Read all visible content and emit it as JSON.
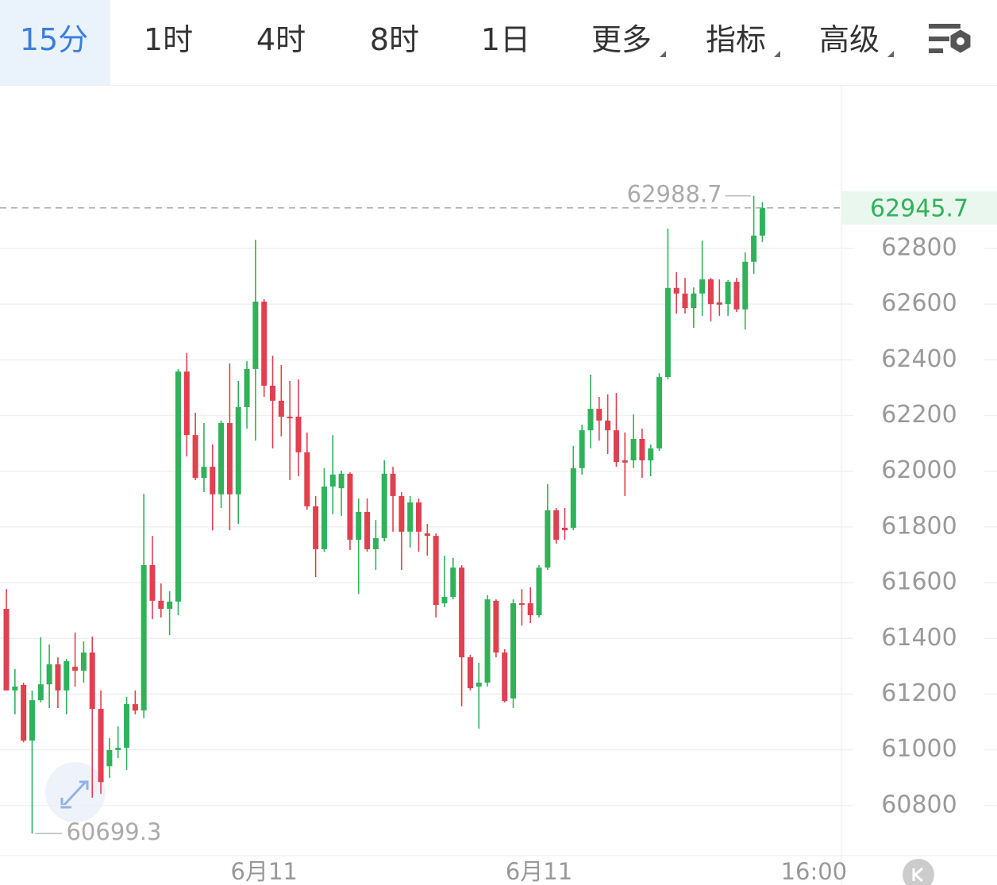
{
  "tabs": [
    "15分",
    "1时",
    "4时",
    "8时",
    "1日",
    "更多",
    "指标",
    "高级"
  ],
  "active_tab": 0,
  "chart_data": {
    "type": "candlestick",
    "open": [
      61506,
      61213,
      61233,
      61033,
      61178,
      61235,
      61307,
      61213,
      61298,
      61284,
      61349,
      61147,
      60941,
      60999,
      61007,
      61164,
      61141,
      61663,
      61535,
      61506,
      61532,
      62358,
      62130,
      61976,
      62016,
      61917,
      62173,
      61917,
      62230,
      62367,
      62609,
      62307,
      62253,
      62196,
      62196,
      62068,
      61874,
      61720,
      61945,
      61939,
      61991,
      61754,
      61854,
      61720,
      61760,
      61991,
      61911,
      61783,
      61888,
      61777,
      61768,
      61526,
      61549,
      61654,
      61332,
      61227,
      61241,
      61535,
      61349,
      61184,
      61526,
      61526,
      61483,
      61654,
      61860,
      61797,
      61797,
      62011,
      62147,
      62224,
      62182,
      62147,
      62039,
      62039,
      62116,
      62039,
      62082,
      62338,
      62658,
      62638,
      62586,
      62638,
      62689,
      62606,
      62600,
      62680,
      62581,
      62752,
      62846
    ],
    "high": [
      61577,
      61290,
      61241,
      61213,
      61404,
      61378,
      61332,
      61326,
      61421,
      61389,
      61406,
      61213,
      61042,
      61084,
      61190,
      61213,
      61919,
      61768,
      61597,
      61569,
      62367,
      62424,
      62210,
      62173,
      62096,
      62182,
      62387,
      62324,
      62395,
      62831,
      62618,
      62415,
      62381,
      62324,
      62330,
      62139,
      61911,
      62011,
      62130,
      62002,
      61996,
      61902,
      61902,
      61825,
      62039,
      62016,
      61925,
      61911,
      61902,
      61811,
      61777,
      61697,
      61689,
      61663,
      61341,
      61312,
      61555,
      61540,
      61361,
      61540,
      61577,
      61583,
      61663,
      61954,
      61868,
      61868,
      62090,
      62167,
      62347,
      62267,
      62276,
      62281,
      62139,
      62204,
      62153,
      62096,
      62352,
      62871,
      62715,
      62694,
      62660,
      62828,
      62694,
      62689,
      62686,
      62694,
      62786,
      62988.7,
      62966
    ],
    "low": [
      61213,
      61127,
      61027,
      60699.3,
      61170,
      61150,
      61150,
      61127,
      61227,
      61241,
      60828,
      60842,
      60899,
      60970,
      60928,
      61127,
      61113,
      61469,
      61475,
      61412,
      61483,
      62053,
      61968,
      61925,
      61788,
      61868,
      61788,
      61811,
      62153,
      62110,
      62267,
      62082,
      62125,
      61968,
      61982,
      61862,
      61620,
      61711,
      61845,
      61840,
      61717,
      61560,
      61711,
      61646,
      61748,
      61783,
      61646,
      61726,
      61711,
      61697,
      61475,
      61512,
      61540,
      61156,
      61213,
      61076,
      61227,
      61332,
      61170,
      61150,
      61446,
      61455,
      61475,
      61646,
      61740,
      61754,
      61788,
      61988,
      62082,
      62110,
      62062,
      62016,
      61911,
      62011,
      61976,
      61982,
      62073,
      62330,
      62566,
      62566,
      62515,
      62558,
      62538,
      62558,
      62558,
      62572,
      62509,
      62709,
      62823
    ],
    "close": [
      61213,
      61227,
      61033,
      61178,
      61235,
      61307,
      61213,
      61318,
      61284,
      61349,
      61147,
      60884,
      60999,
      61007,
      61164,
      61141,
      61663,
      61535,
      61506,
      61532,
      62358,
      62130,
      61976,
      62016,
      61917,
      62173,
      61917,
      62230,
      62367,
      62609,
      62307,
      62253,
      62196,
      62190,
      62068,
      61874,
      61720,
      61945,
      61988,
      61991,
      61754,
      61854,
      61720,
      61760,
      61991,
      61911,
      61783,
      61888,
      61783,
      61768,
      61520,
      61549,
      61654,
      61332,
      61221,
      61241,
      61540,
      61349,
      61175,
      61526,
      61520,
      61483,
      61654,
      61860,
      61754,
      61788,
      62011,
      62147,
      62224,
      62182,
      62147,
      62033,
      62031,
      62116,
      62039,
      62082,
      62338,
      62658,
      62638,
      62586,
      62638,
      62689,
      62600,
      62598,
      62680,
      62581,
      62752,
      62846,
      62945.7
    ],
    "up_color": "#2fb25a",
    "down_color": "#e0404f",
    "xlim": [
      -0.74,
      97.2
    ],
    "xticks": [
      {
        "value": 30,
        "label": "6月11"
      },
      {
        "value": 62,
        "label": "6月11"
      },
      {
        "value": 94,
        "label": "16:00"
      }
    ],
    "ylim": [
      60620,
      63384
    ],
    "yticks": [
      60800,
      61000,
      61200,
      61400,
      61600,
      61800,
      62000,
      62200,
      62400,
      62600,
      62800
    ],
    "grid": true
  }
}
